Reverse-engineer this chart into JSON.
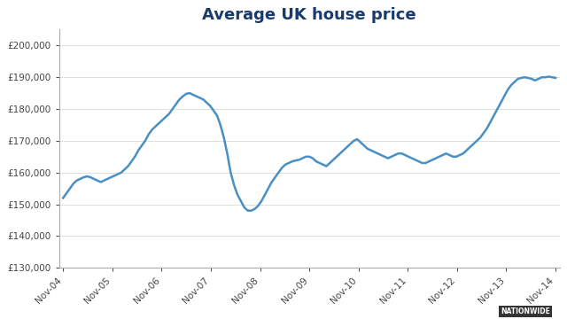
{
  "title": "Average UK house price",
  "title_fontsize": 13,
  "title_color": "#1a3a6b",
  "line_color": "#4a90c4",
  "line_width": 1.8,
  "background_color": "#ffffff",
  "plot_bg_color": "#ffffff",
  "ylim": [
    130000,
    205000
  ],
  "yticks": [
    130000,
    140000,
    150000,
    160000,
    170000,
    180000,
    190000,
    200000
  ],
  "watermark": "NATIONWIDE",
  "xtick_labels": [
    "Nov-04",
    "Nov-05",
    "Nov-06",
    "Nov-07",
    "Nov-08",
    "Nov-09",
    "Nov-10",
    "Nov-11",
    "Nov-12",
    "Nov-13",
    "Nov-14"
  ],
  "series": [
    152000,
    153500,
    155000,
    156500,
    157500,
    158000,
    158500,
    158800,
    158500,
    158000,
    157500,
    157000,
    157500,
    158000,
    158500,
    159000,
    159500,
    160000,
    161000,
    162000,
    163500,
    165000,
    167000,
    168500,
    170000,
    172000,
    173500,
    174500,
    175500,
    176500,
    177500,
    178500,
    180000,
    181500,
    183000,
    184000,
    184800,
    185000,
    184500,
    184000,
    183500,
    183000,
    182000,
    181000,
    179500,
    178000,
    175000,
    171000,
    166000,
    160000,
    156000,
    153000,
    151000,
    149000,
    148000,
    148000,
    148500,
    149500,
    151000,
    153000,
    155000,
    157000,
    158500,
    160000,
    161500,
    162500,
    163000,
    163500,
    163800,
    164000,
    164500,
    165000,
    165000,
    164500,
    163500,
    163000,
    162500,
    162000,
    163000,
    164000,
    165000,
    166000,
    167000,
    168000,
    169000,
    170000,
    170500,
    169500,
    168500,
    167500,
    167000,
    166500,
    166000,
    165500,
    165000,
    164500,
    165000,
    165500,
    166000,
    166000,
    165500,
    165000,
    164500,
    164000,
    163500,
    163000,
    163000,
    163500,
    164000,
    164500,
    165000,
    165500,
    166000,
    165500,
    165000,
    165000,
    165500,
    166000,
    167000,
    168000,
    169000,
    170000,
    171000,
    172500,
    174000,
    176000,
    178000,
    180000,
    182000,
    184000,
    186000,
    187500,
    188500,
    189500,
    189800,
    190000,
    189800,
    189500,
    189000,
    189500,
    190000,
    190000,
    190200,
    190000,
    189800
  ]
}
